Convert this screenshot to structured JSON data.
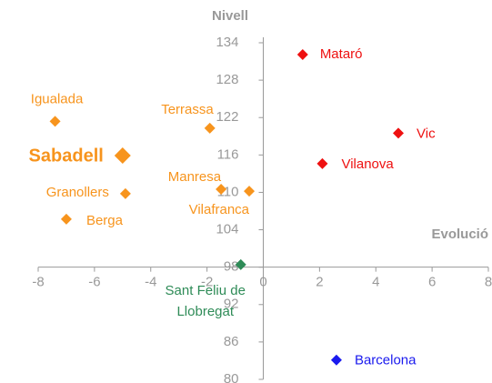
{
  "chart_data": {
    "type": "scatter",
    "xlabel": "Evolució",
    "ylabel": "Nivell",
    "xlim": [
      -8,
      8
    ],
    "ylim": [
      80,
      134
    ],
    "xticks": [
      -8,
      -6,
      -4,
      -2,
      0,
      2,
      4,
      6,
      8
    ],
    "yticks": [
      80,
      86,
      92,
      98,
      104,
      110,
      116,
      122,
      128,
      134
    ],
    "x_axis_at": 98,
    "y_axis_at": 0,
    "series": [
      {
        "name": "Mataró",
        "color": "#ee1111",
        "x": [
          1.4
        ],
        "values": [
          132.1
        ]
      },
      {
        "name": "Vic",
        "color": "#ee1111",
        "x": [
          4.8
        ],
        "values": [
          119.5
        ]
      },
      {
        "name": "Vilanova",
        "color": "#ee1111",
        "x": [
          2.1
        ],
        "values": [
          114.6
        ]
      },
      {
        "name": "Barcelona",
        "color": "#1a1aee",
        "x": [
          2.6
        ],
        "values": [
          83.1
        ]
      },
      {
        "name": "Sant Feliu de Llobregat",
        "color": "#2e8b57",
        "x": [
          -0.8
        ],
        "values": [
          98.4
        ]
      },
      {
        "name": "Igualada",
        "color": "#f7941d",
        "x": [
          -7.4
        ],
        "values": [
          121.4
        ]
      },
      {
        "name": "Terrassa",
        "color": "#f7941d",
        "x": [
          -1.9
        ],
        "values": [
          120.3
        ]
      },
      {
        "name": "Sabadell",
        "color": "#f7941d",
        "x": [
          -5.0
        ],
        "values": [
          115.9
        ],
        "bold": true
      },
      {
        "name": "Manresa",
        "color": "#f7941d",
        "x": [
          -1.5
        ],
        "values": [
          110.5
        ]
      },
      {
        "name": "Vilafranca",
        "color": "#f7941d",
        "x": [
          -0.5
        ],
        "values": [
          110.2
        ]
      },
      {
        "name": "Granollers",
        "color": "#f7941d",
        "x": [
          -4.9
        ],
        "values": [
          109.8
        ]
      },
      {
        "name": "Berga",
        "color": "#f7941d",
        "x": [
          -7.0
        ],
        "values": [
          105.7
        ]
      }
    ]
  }
}
